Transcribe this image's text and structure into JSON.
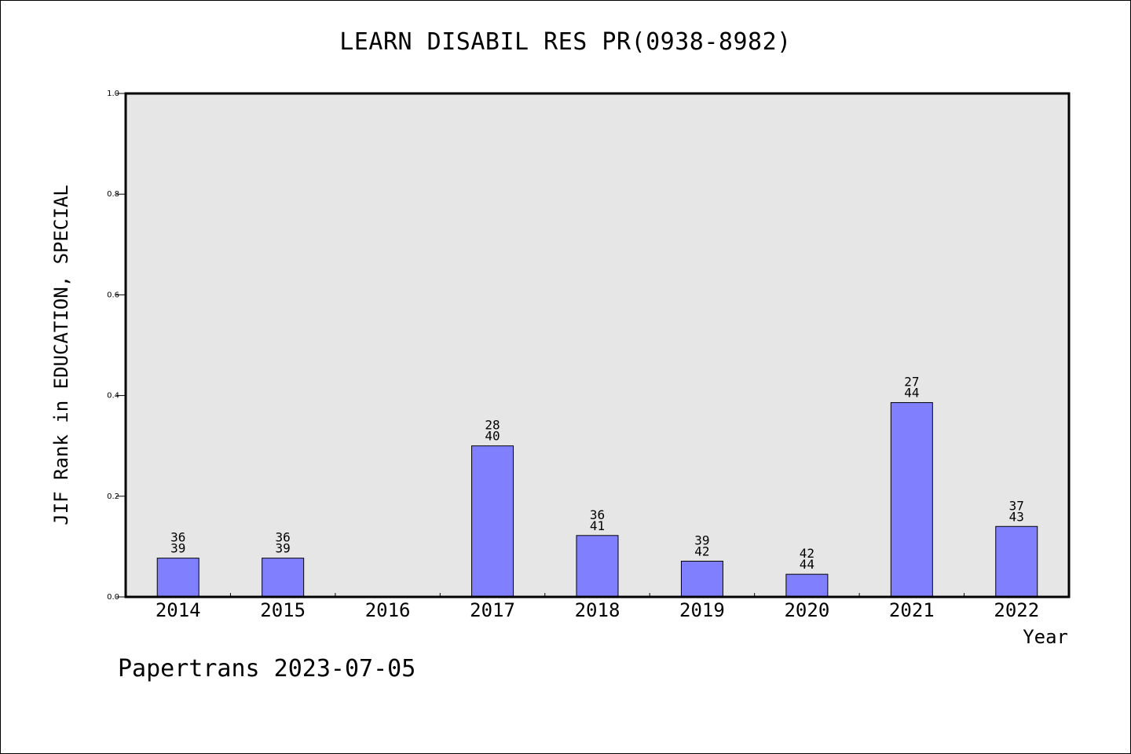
{
  "page": {
    "title": "LEARN DISABIL RES PR(0938-8982)",
    "footer": "Papertrans 2023-07-05"
  },
  "chart_data": {
    "type": "bar",
    "title": "LEARN DISABIL RES PR(0938-8982)",
    "xlabel": "Year",
    "ylabel": "JIF Rank in EDUCATION, SPECIAL",
    "ylim": [
      0,
      1
    ],
    "yticks": [
      "0.0",
      "0.2",
      "0.4",
      "0.6",
      "0.8",
      "1.0"
    ],
    "grid": false,
    "categories": [
      "2014",
      "2015",
      "2016",
      "2017",
      "2018",
      "2019",
      "2020",
      "2021",
      "2022"
    ],
    "values": [
      0.077,
      0.077,
      null,
      0.3,
      0.122,
      0.071,
      0.045,
      0.386,
      0.14
    ],
    "data_labels": [
      [
        "36",
        "39"
      ],
      [
        "36",
        "39"
      ],
      null,
      [
        "28",
        "40"
      ],
      [
        "36",
        "41"
      ],
      [
        "39",
        "42"
      ],
      [
        "42",
        "44"
      ],
      [
        "27",
        "44"
      ],
      [
        "37",
        "43"
      ]
    ],
    "colors": {
      "bar": "#8080ff",
      "plot_background": "#e6e6e6",
      "border": "#000000"
    }
  }
}
